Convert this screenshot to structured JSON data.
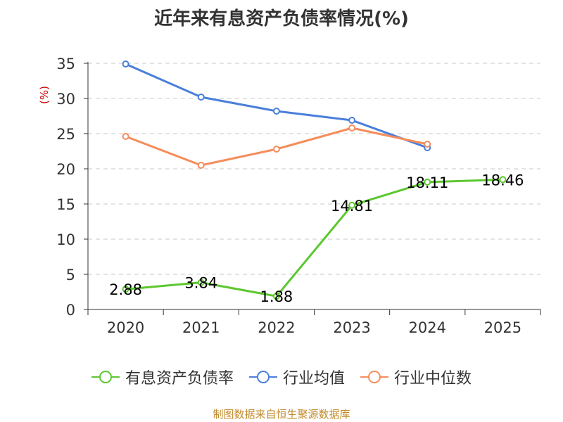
{
  "chart_data": {
    "type": "line",
    "title": "近年来有息资产负债率情况(%)",
    "ylabel": "(%)",
    "xlabel": "",
    "ylim": [
      0,
      35
    ],
    "yticks": [
      0,
      5,
      10,
      15,
      20,
      25,
      30,
      35
    ],
    "categories": [
      "2020",
      "2021",
      "2022",
      "2023",
      "2024",
      "2025"
    ],
    "grid": true,
    "legend_position": "bottom",
    "series": [
      {
        "name": "有息资产负债率",
        "color": "#5cc72f",
        "values": [
          2.88,
          3.84,
          1.88,
          14.81,
          18.11,
          18.46
        ],
        "labels": [
          "2.88",
          "3.84",
          "1.88",
          "14.81",
          "18.11",
          "18.46"
        ]
      },
      {
        "name": "行业均值",
        "color": "#4a7fdb",
        "values": [
          34.9,
          30.2,
          28.2,
          26.9,
          23.0,
          null
        ]
      },
      {
        "name": "行业中位数",
        "color": "#f58d5c",
        "values": [
          24.6,
          20.5,
          22.8,
          25.8,
          23.5,
          null
        ]
      }
    ]
  },
  "source": "制图数据来自恒生聚源数据库"
}
